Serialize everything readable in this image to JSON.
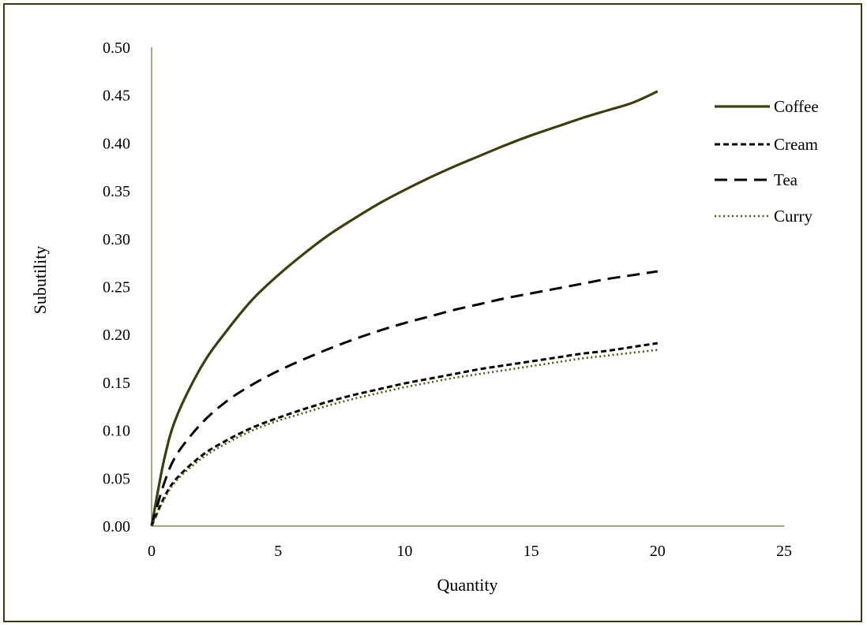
{
  "chart_data": {
    "type": "line",
    "title": "",
    "xlabel": "Quantity",
    "ylabel": "Subutility",
    "xlim": [
      0,
      25
    ],
    "ylim": [
      0,
      0.5
    ],
    "x_ticks": [
      "0",
      "5",
      "10",
      "15",
      "20",
      "25"
    ],
    "y_ticks": [
      "0.00",
      "0.05",
      "0.10",
      "0.15",
      "0.20",
      "0.25",
      "0.30",
      "0.35",
      "0.40",
      "0.45",
      "0.50"
    ],
    "grid": false,
    "legend_position": "right",
    "x": [
      0,
      0.5,
      1,
      2,
      3,
      4,
      5,
      6,
      7,
      8,
      9,
      10,
      11,
      12,
      13,
      14,
      15,
      16,
      17,
      18,
      19,
      20
    ],
    "series": [
      {
        "name": "Coffee",
        "style": "solid",
        "color": "#3d3d0f",
        "values": [
          0.0,
          0.07,
          0.115,
          0.168,
          0.205,
          0.237,
          0.262,
          0.284,
          0.304,
          0.321,
          0.337,
          0.351,
          0.364,
          0.376,
          0.387,
          0.398,
          0.408,
          0.417,
          0.426,
          0.434,
          0.442,
          0.454
        ]
      },
      {
        "name": "Cream",
        "style": "short-dash",
        "color": "#000000",
        "values": [
          0.0,
          0.03,
          0.05,
          0.074,
          0.09,
          0.103,
          0.113,
          0.122,
          0.13,
          0.137,
          0.143,
          0.149,
          0.154,
          0.159,
          0.164,
          0.168,
          0.172,
          0.176,
          0.18,
          0.183,
          0.187,
          0.191
        ]
      },
      {
        "name": "Tea",
        "style": "long-dash",
        "color": "#000000",
        "values": [
          0.0,
          0.045,
          0.075,
          0.108,
          0.131,
          0.148,
          0.162,
          0.174,
          0.185,
          0.195,
          0.204,
          0.212,
          0.219,
          0.226,
          0.232,
          0.238,
          0.243,
          0.248,
          0.253,
          0.258,
          0.262,
          0.266
        ]
      },
      {
        "name": "Curry",
        "style": "dotted",
        "color": "#4a5a10",
        "values": [
          0.0,
          0.028,
          0.048,
          0.071,
          0.087,
          0.1,
          0.11,
          0.118,
          0.126,
          0.133,
          0.139,
          0.145,
          0.15,
          0.155,
          0.159,
          0.163,
          0.167,
          0.171,
          0.175,
          0.178,
          0.181,
          0.184
        ]
      }
    ]
  }
}
